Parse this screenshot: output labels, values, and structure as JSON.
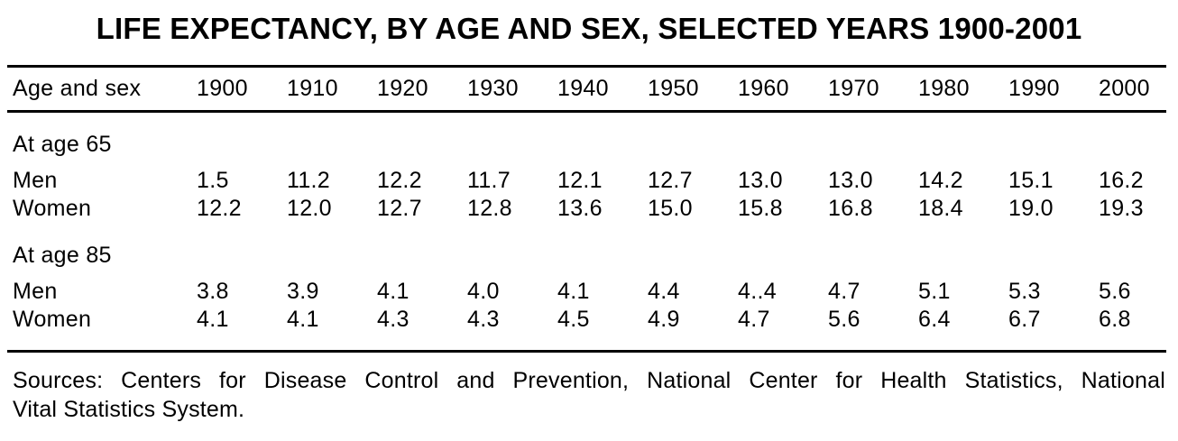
{
  "title": "LIFE EXPECTANCY, BY AGE AND SEX, SELECTED YEARS 1900-2001",
  "table": {
    "header_label": "Age and sex",
    "years": [
      "1900",
      "1910",
      "1920",
      "1930",
      "1940",
      "1950",
      "1960",
      "1970",
      "1980",
      "1990",
      "2000"
    ],
    "sections": [
      {
        "label": "At age 65",
        "rows": [
          {
            "label": "Men",
            "values": [
              "1.5",
              "11.2",
              "12.2",
              "11.7",
              "12.1",
              "12.7",
              "13.0",
              "13.0",
              "14.2",
              "15.1",
              "16.2"
            ]
          },
          {
            "label": "Women",
            "values": [
              "12.2",
              "12.0",
              "12.7",
              "12.8",
              "13.6",
              "15.0",
              "15.8",
              "16.8",
              "18.4",
              "19.0",
              "19.3"
            ]
          }
        ]
      },
      {
        "label": "At age 85",
        "rows": [
          {
            "label": "Men",
            "values": [
              "3.8",
              "3.9",
              "4.1",
              "4.0",
              "4.1",
              "4.4",
              "4..4",
              "4.7",
              "5.1",
              "5.3",
              "5.6"
            ]
          },
          {
            "label": "Women",
            "values": [
              "4.1",
              "4.1",
              "4.3",
              "4.3",
              "4.5",
              "4.9",
              "4.7",
              "5.6",
              "6.4",
              "6.7",
              "6.8"
            ]
          }
        ]
      }
    ]
  },
  "footer": {
    "sources_line1": "Sources: Centers for Disease Control and Prevention, National Center for Health Statistics, National",
    "sources_line2": "Vital Statistics System."
  }
}
